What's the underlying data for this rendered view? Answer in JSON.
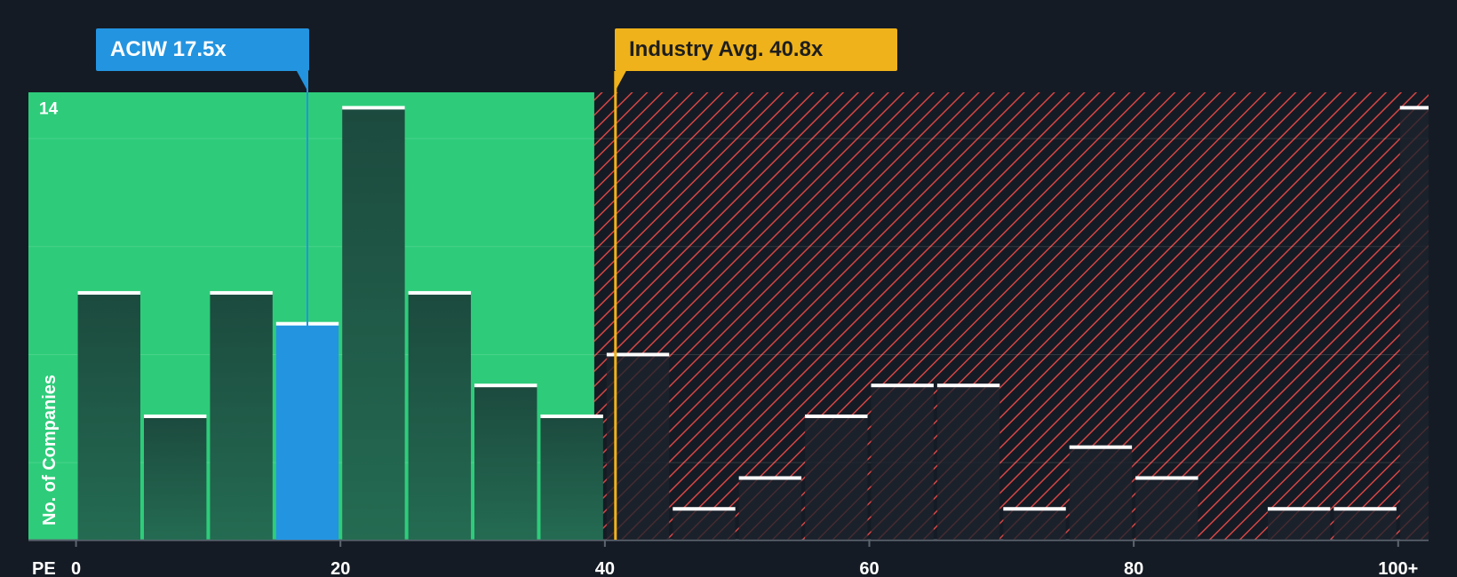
{
  "company_label": "ACIW 17.5x",
  "industry_label": "Industry Avg. 40.8x",
  "colors": {
    "background": "#151b24",
    "fair_zone": "#2ecc7a",
    "company_bar": "#2394e0",
    "bar_in_fair": "#1f4c40",
    "bar_outside": "#1c222c",
    "overvalued_hatch": "#d64545",
    "industry": "#efb21a"
  },
  "chart_data": {
    "type": "bar",
    "xlabel": "PE",
    "ylabel": "No. of Companies",
    "x_ticks": [
      "0",
      "20",
      "40",
      "60",
      "80",
      "100+"
    ],
    "x_tick_values": [
      0,
      20,
      40,
      60,
      80,
      100
    ],
    "y_tick_labels": [
      "14"
    ],
    "ylim": [
      0,
      14.5
    ],
    "xlim": [
      -3.6,
      102.3
    ],
    "bin_width": 5,
    "bins": [
      {
        "start": 0,
        "value": 8
      },
      {
        "start": 5,
        "value": 4
      },
      {
        "start": 10,
        "value": 8
      },
      {
        "start": 15,
        "value": 7,
        "highlight": true
      },
      {
        "start": 20,
        "value": 14
      },
      {
        "start": 25,
        "value": 8
      },
      {
        "start": 30,
        "value": 5
      },
      {
        "start": 35,
        "value": 4
      },
      {
        "start": 40,
        "value": 6
      },
      {
        "start": 45,
        "value": 1
      },
      {
        "start": 50,
        "value": 2
      },
      {
        "start": 55,
        "value": 4
      },
      {
        "start": 60,
        "value": 5
      },
      {
        "start": 65,
        "value": 5
      },
      {
        "start": 70,
        "value": 1
      },
      {
        "start": 75,
        "value": 3
      },
      {
        "start": 80,
        "value": 2
      },
      {
        "start": 85,
        "value": 0
      },
      {
        "start": 90,
        "value": 1
      },
      {
        "start": 95,
        "value": 1
      },
      {
        "start": 100,
        "value": 14
      }
    ],
    "company_pe": 17.5,
    "industry_avg_pe": 40.8,
    "fair_zone_max": 39.2,
    "grid": true
  }
}
